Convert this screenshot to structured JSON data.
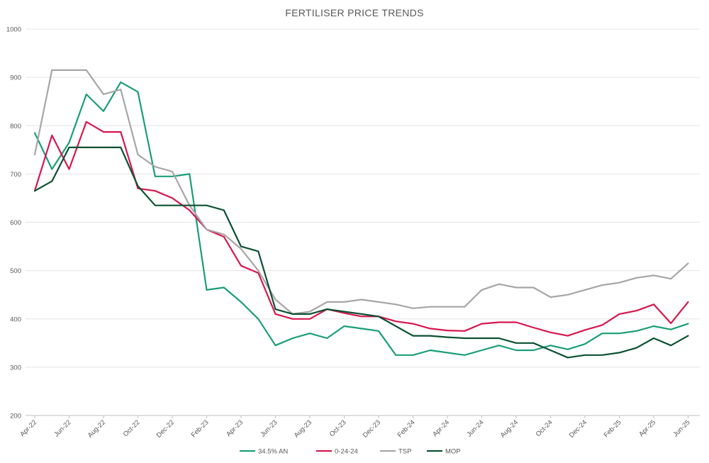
{
  "chart_data": {
    "type": "line",
    "title": "FERTILISER PRICE TRENDS",
    "xlabel": "",
    "ylabel": "",
    "ylim": [
      200,
      1000
    ],
    "yticks": [
      200,
      300,
      400,
      500,
      600,
      700,
      800,
      900,
      1000
    ],
    "xtick_labels": [
      "Apr-22",
      "Jun-22",
      "Aug-22",
      "Oct-22",
      "Dec-22",
      "Feb-23",
      "Apr-23",
      "Jun-23",
      "Aug-23",
      "Oct-23",
      "Dec-23",
      "Feb-24",
      "Apr-24",
      "Jun-24",
      "Aug-24",
      "Oct-24",
      "Dec-24",
      "Feb-25",
      "Apr-25",
      "Jun-25"
    ],
    "grid": true,
    "legend_position": "bottom",
    "series": [
      {
        "name": "34.5% AN",
        "color": "#1a9e77",
        "values": [
          785,
          710,
          765,
          865,
          830,
          890,
          870,
          695,
          695,
          700,
          460,
          465,
          435,
          400,
          345,
          360,
          370,
          360,
          385,
          380,
          375,
          325,
          325,
          335,
          330,
          325,
          335,
          345,
          335,
          335,
          345,
          337,
          348,
          370,
          370,
          375,
          385,
          378,
          390
        ]
      },
      {
        "name": "0-24-24",
        "color": "#d6174f",
        "values": [
          665,
          780,
          710,
          808,
          787,
          787,
          670,
          665,
          650,
          625,
          585,
          570,
          510,
          495,
          410,
          400,
          400,
          420,
          412,
          405,
          405,
          395,
          390,
          380,
          376,
          375,
          390,
          393,
          393,
          382,
          372,
          365,
          377,
          387,
          410,
          417,
          430,
          391,
          435
        ]
      },
      {
        "name": "TSP",
        "color": "#a6a6a6",
        "values": [
          740,
          915,
          915,
          915,
          865,
          875,
          740,
          715,
          705,
          635,
          585,
          575,
          545,
          500,
          440,
          410,
          415,
          435,
          435,
          440,
          435,
          430,
          422,
          425,
          425,
          425,
          460,
          472,
          465,
          465,
          445,
          450,
          460,
          470,
          475,
          485,
          490,
          483,
          515
        ]
      },
      {
        "name": "MOP",
        "color": "#0b5132",
        "values": [
          665,
          685,
          755,
          755,
          755,
          755,
          675,
          635,
          635,
          635,
          635,
          625,
          550,
          540,
          420,
          410,
          410,
          420,
          415,
          410,
          405,
          385,
          365,
          365,
          362,
          360,
          360,
          360,
          350,
          350,
          335,
          320,
          325,
          325,
          330,
          340,
          360,
          345,
          365
        ]
      }
    ]
  }
}
